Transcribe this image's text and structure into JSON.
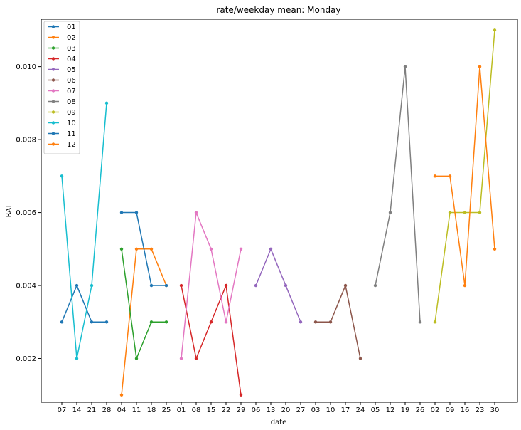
{
  "chart_data": {
    "type": "line",
    "title": "rate/weekday mean: Monday",
    "xlabel": "date",
    "ylabel": "RAT",
    "ylim": [
      0.0008,
      0.0113
    ],
    "yticks": [
      "0.002",
      "0.004",
      "0.006",
      "0.008",
      "0.010"
    ],
    "ytick_values": [
      0.002,
      0.004,
      0.006,
      0.008,
      0.01
    ],
    "categories": [
      "07",
      "14",
      "21",
      "28",
      "04",
      "11",
      "18",
      "25",
      "01",
      "08",
      "15",
      "22",
      "29",
      "06",
      "13",
      "20",
      "27",
      "03",
      "10",
      "17",
      "24",
      "05",
      "12",
      "19",
      "26",
      "02",
      "09",
      "16",
      "23",
      "30"
    ],
    "legend_position": "upper-left",
    "grid": false,
    "series": [
      {
        "name": "01",
        "color": "#1f77b4",
        "x": [
          0,
          1,
          2,
          3
        ],
        "values": [
          0.003,
          0.004,
          0.003,
          0.003
        ]
      },
      {
        "name": "02",
        "color": "#ff7f0e",
        "x": [
          4,
          5,
          6,
          7
        ],
        "values": [
          0.001,
          0.005,
          0.005,
          0.004
        ]
      },
      {
        "name": "03",
        "color": "#2ca02c",
        "x": [
          4,
          5,
          6,
          7
        ],
        "values": [
          0.005,
          0.002,
          0.003,
          0.003
        ]
      },
      {
        "name": "04",
        "color": "#d62728",
        "x": [
          8,
          9,
          10,
          11,
          12
        ],
        "values": [
          0.004,
          0.002,
          0.003,
          0.004,
          0.001
        ]
      },
      {
        "name": "05",
        "color": "#9467bd",
        "x": [
          13,
          14,
          15,
          16
        ],
        "values": [
          0.004,
          0.005,
          0.004,
          0.003
        ]
      },
      {
        "name": "06",
        "color": "#8c564b",
        "x": [
          17,
          18,
          19,
          20
        ],
        "values": [
          0.003,
          0.003,
          0.004,
          0.002
        ]
      },
      {
        "name": "07",
        "color": "#e377c2",
        "x": [
          8,
          9,
          10,
          11,
          12
        ],
        "values": [
          0.002,
          0.006,
          0.005,
          0.003,
          0.005
        ]
      },
      {
        "name": "08",
        "color": "#7f7f7f",
        "x": [
          21,
          22,
          23,
          24
        ],
        "values": [
          0.004,
          0.006,
          0.01,
          0.003
        ]
      },
      {
        "name": "09",
        "color": "#bcbd22",
        "x": [
          25,
          26,
          27,
          28,
          29
        ],
        "values": [
          0.003,
          0.006,
          0.006,
          0.006,
          0.011
        ]
      },
      {
        "name": "10",
        "color": "#17becf",
        "x": [
          0,
          1,
          2,
          3
        ],
        "values": [
          0.007,
          0.002,
          0.004,
          0.009
        ]
      },
      {
        "name": "11",
        "color": "#1f77b4",
        "x": [
          4,
          5,
          6,
          7
        ],
        "values": [
          0.006,
          0.006,
          0.004,
          0.004
        ]
      },
      {
        "name": "12",
        "color": "#ff7f0e",
        "x": [
          25,
          26,
          27,
          28,
          29
        ],
        "values": [
          0.007,
          0.007,
          0.004,
          0.01,
          0.005
        ]
      }
    ]
  }
}
